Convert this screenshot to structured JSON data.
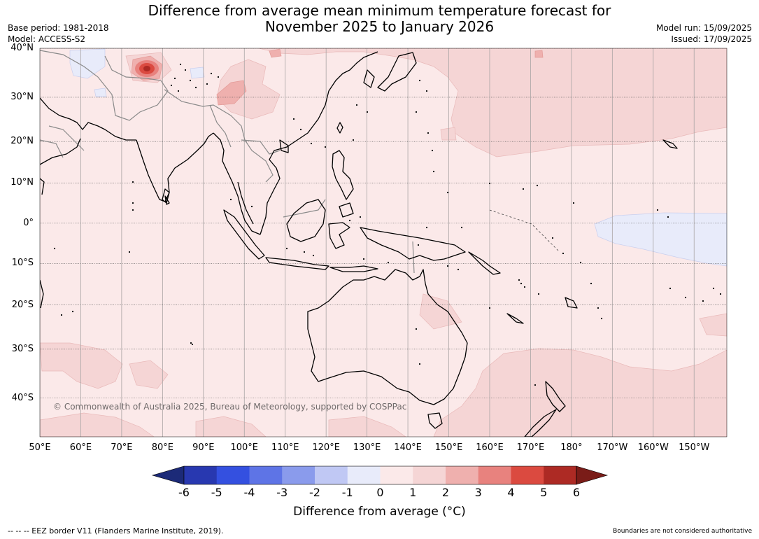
{
  "header": {
    "title_line1": "Difference from average mean minimum temperature forecast for",
    "title_line2": "November 2025 to January 2026",
    "base_period": "Base period: 1981-2018",
    "model": "Model: ACCESS-S2",
    "model_run": "Model run: 15/09/2025",
    "issued": "Issued: 17/09/2025"
  },
  "map": {
    "extent": {
      "lon_min": 50,
      "lon_max": 218,
      "lat_min": -47,
      "lat_max": 40
    },
    "lat_labels": [
      "40°N",
      "30°N",
      "20°N",
      "10°N",
      "0°",
      "10°S",
      "20°S",
      "30°S",
      "40°S"
    ],
    "lat_values": [
      40,
      30,
      20,
      10,
      0,
      -10,
      -20,
      -30,
      -40
    ],
    "lon_labels": [
      "50°E",
      "60°E",
      "70°E",
      "80°E",
      "90°E",
      "100°E",
      "110°E",
      "120°E",
      "130°E",
      "140°E",
      "150°E",
      "160°E",
      "170°E",
      "180°",
      "170°W",
      "160°W",
      "150°W"
    ],
    "lon_values": [
      50,
      60,
      70,
      80,
      90,
      100,
      110,
      120,
      130,
      140,
      150,
      160,
      170,
      180,
      190,
      200,
      210
    ],
    "copyright": "© Commonwealth of Australia 2025, Bureau of Meteorology, supported by COSPPac",
    "background_class_color": "#fbe9e9"
  },
  "colorbar": {
    "label": "Difference from average (°C)",
    "ticks": [
      "-6",
      "-5",
      "-4",
      "-3",
      "-2",
      "-1",
      "0",
      "1",
      "2",
      "3",
      "4",
      "5",
      "6"
    ],
    "colors": [
      "#1c2a78",
      "#2838b0",
      "#3450e0",
      "#5e74e6",
      "#8a9bec",
      "#c0c8f4",
      "#e8ebfa",
      "#fbe9e9",
      "#f5d5d5",
      "#efb0ae",
      "#e8827e",
      "#db4a40",
      "#ad2a24",
      "#7a1c18"
    ]
  },
  "footer": {
    "eez": "--  --  -- EEZ border V11 (Flanders Marine Institute, 2019).",
    "disclaimer": "Boundaries are not considered authoritative"
  }
}
